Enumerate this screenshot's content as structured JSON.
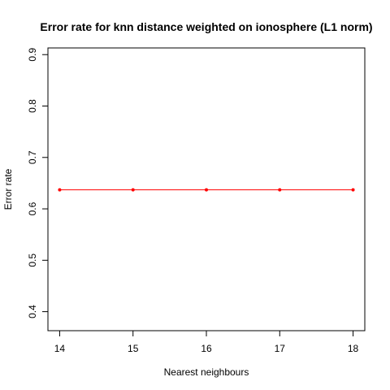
{
  "chart_data": {
    "type": "line",
    "title": "Error rate for knn distance weighted on ionosphere (L1 norm)",
    "xlabel": "Nearest neighbours",
    "ylabel": "Error rate",
    "x": [
      14,
      15,
      16,
      17,
      18
    ],
    "series": [
      {
        "values": [
          0.637,
          0.637,
          0.637,
          0.637,
          0.637
        ],
        "color": "#ff0000"
      }
    ],
    "xticks": [
      "14",
      "15",
      "16",
      "17",
      "18"
    ],
    "yticks": [
      "0.4",
      "0.5",
      "0.6",
      "0.7",
      "0.8",
      "0.9"
    ],
    "xlim": [
      13.84,
      18.16
    ],
    "ylim": [
      0.363,
      0.913
    ],
    "grid": false,
    "legend": "none"
  }
}
